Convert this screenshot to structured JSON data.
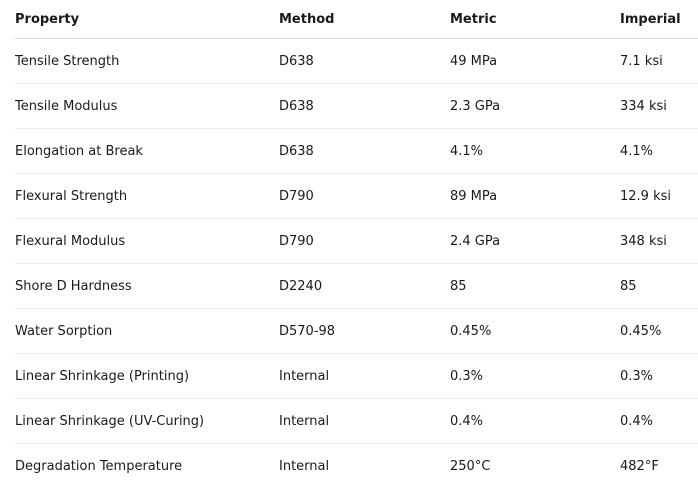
{
  "table": {
    "headers": [
      "Property",
      "Method",
      "Metric",
      "Imperial"
    ],
    "rows": [
      [
        "Tensile Strength",
        "D638",
        "49 MPa",
        "7.1 ksi"
      ],
      [
        "Tensile Modulus",
        "D638",
        "2.3 GPa",
        "334 ksi"
      ],
      [
        "Elongation at Break",
        "D638",
        "4.1%",
        "4.1%"
      ],
      [
        "Flexural Strength",
        "D790",
        "89 MPa",
        "12.9 ksi"
      ],
      [
        "Flexural Modulus",
        "D790",
        "2.4 GPa",
        "348 ksi"
      ],
      [
        "Shore D Hardness",
        "D2240",
        "85",
        "85"
      ],
      [
        "Water Sorption",
        "D570-98",
        "0.45%",
        "0.45%"
      ],
      [
        "Linear Shrinkage (Printing)",
        "Internal",
        "0.3%",
        "0.3%"
      ],
      [
        "Linear Shrinkage (UV-Curing)",
        "Internal",
        "0.4%",
        "0.4%"
      ],
      [
        "Degradation Temperature",
        "Internal",
        "250°C",
        "482°F"
      ]
    ]
  }
}
